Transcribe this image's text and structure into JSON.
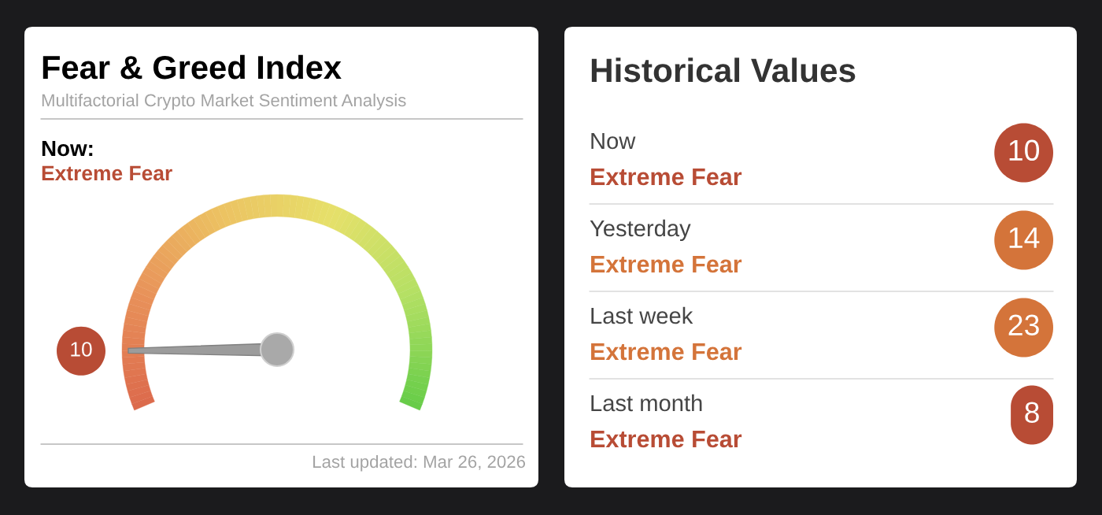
{
  "chart_data": [
    {
      "type": "other",
      "title": "Fear & Greed Index",
      "subtitle": "Multifactorial Crypto Market Sentiment Analysis",
      "categories": [
        "Extreme Fear"
      ],
      "values": [
        10
      ],
      "color": "#b84c35",
      "data_labels": true,
      "annotations": [
        "Now:",
        "Last updated: Mar 26, 2026"
      ]
    },
    {
      "type": "other",
      "title": "Historical Values",
      "categories": [
        "Now",
        "Yesterday",
        "Last week",
        "Last month"
      ],
      "series": [
        {
          "color": "#b84c35",
          "values": [
            10,
            null,
            null,
            8
          ]
        },
        {
          "color": "#d4743a",
          "values": [
            null,
            14,
            23,
            null
          ]
        }
      ],
      "data_labels": true,
      "annotations": [
        "Extreme Fear",
        "Extreme Fear",
        "Extreme Fear",
        "Extreme Fear"
      ]
    }
  ]
}
